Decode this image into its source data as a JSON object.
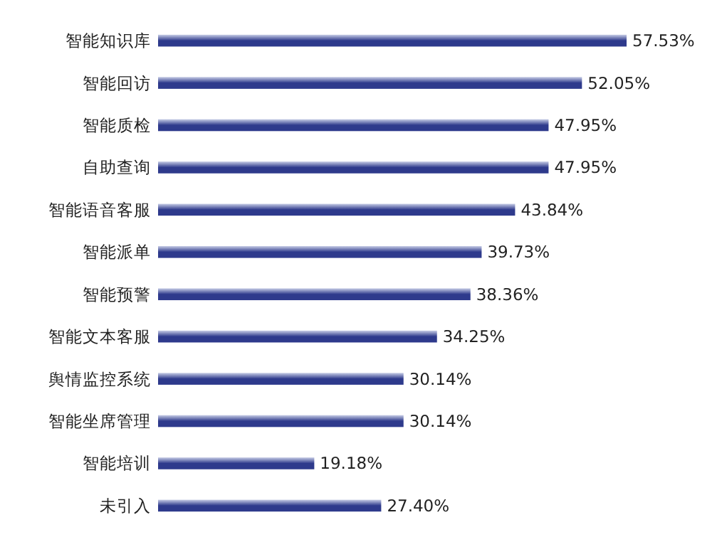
{
  "chart_data": {
    "type": "bar",
    "orientation": "horizontal",
    "categories": [
      "智能知识库",
      "智能回访",
      "智能质检",
      "自助查询",
      "智能语音客服",
      "智能派单",
      "智能预警",
      "智能文本客服",
      "舆情监控系统",
      "智能坐席管理",
      "智能培训",
      "未引入"
    ],
    "values": [
      57.53,
      52.05,
      47.95,
      47.95,
      43.84,
      39.73,
      38.36,
      34.25,
      30.14,
      30.14,
      19.18,
      27.4
    ],
    "value_labels": [
      "57.53%",
      "52.05%",
      "47.95%",
      "47.95%",
      "43.84%",
      "39.73%",
      "38.36%",
      "34.25%",
      "30.14%",
      "30.14%",
      "19.18%",
      "27.40%"
    ],
    "color": "#2e3a8c"
  }
}
